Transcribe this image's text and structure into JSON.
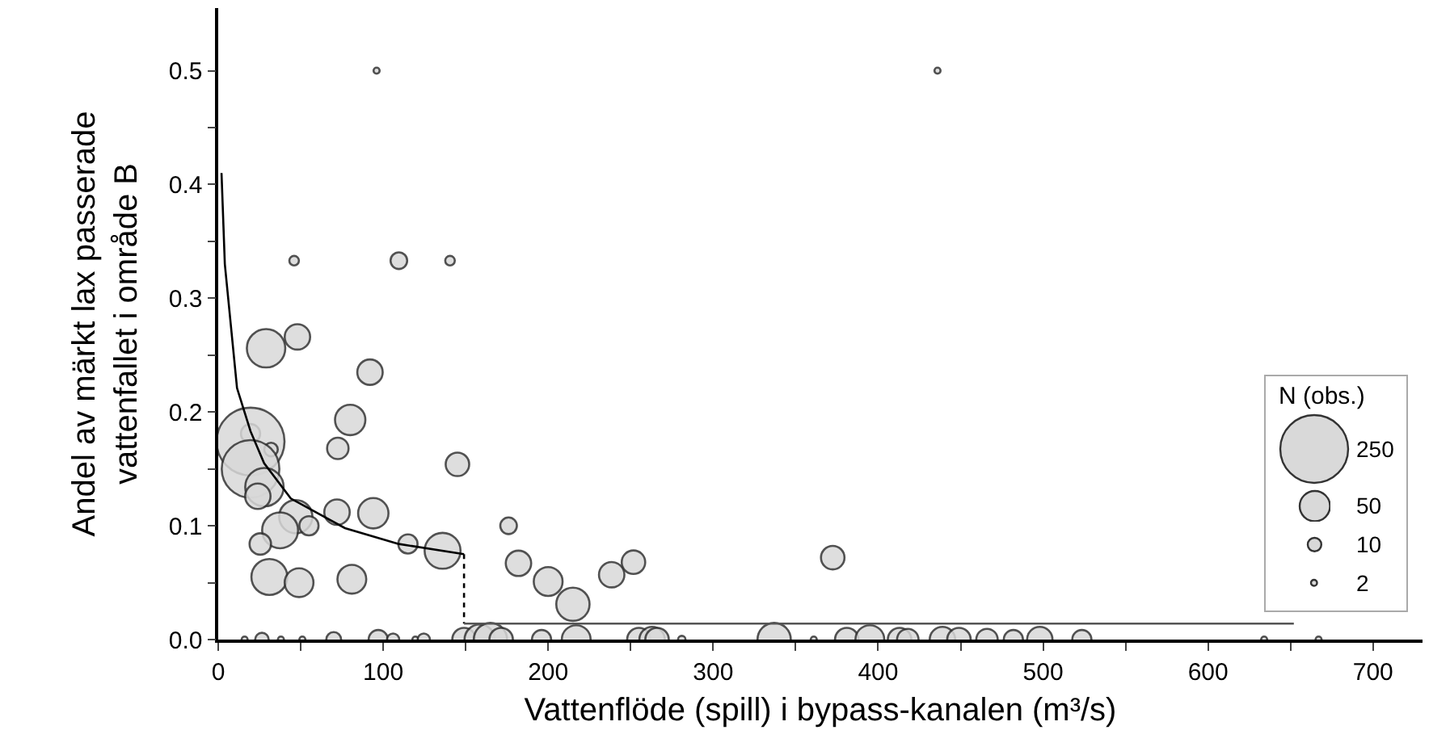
{
  "chart_data": {
    "type": "bubble",
    "xlabel": "Vattenflöde (spill) i bypass-kanalen (m³/s)",
    "ylabel": "Andel av märkt lax passerade\nvattenfallet i område B",
    "legend_title": "N (obs.)",
    "size_legend": [
      250,
      50,
      10,
      2
    ],
    "grid": false,
    "xlim": [
      0,
      730
    ],
    "xticks": [
      0,
      {
        "value": 50,
        "label": null
      },
      100,
      {
        "value": 150,
        "label": null
      },
      200,
      {
        "value": 250,
        "label": null
      },
      300,
      {
        "value": 350,
        "label": null
      },
      400,
      {
        "value": 450,
        "label": null
      },
      500,
      {
        "value": 550,
        "label": null
      },
      600,
      {
        "value": 650,
        "label": null
      },
      700
    ],
    "ylim": [
      0,
      0.555
    ],
    "yticks": [
      {
        "value": 0,
        "label": "0.0"
      },
      {
        "value": 0.05,
        "label": null
      },
      0.1,
      {
        "value": 0.15,
        "label": null
      },
      0.2,
      {
        "value": 0.25,
        "label": null
      },
      0.3,
      {
        "value": 0.35,
        "label": null
      },
      0.4,
      {
        "value": 0.45,
        "label": null
      },
      0.5
    ],
    "series": [
      {
        "color": "#d9d9d9",
        "x": [
          96,
          436,
          46,
          109.5,
          140.5,
          29,
          48,
          92,
          80,
          72.5,
          19.6,
          19.6,
          32,
          19.6,
          28,
          24,
          145,
          47,
          72,
          94,
          37.5,
          55,
          25.5,
          115,
          136,
          176,
          31,
          49,
          81,
          182,
          200,
          215,
          238.5,
          251.7,
          372.5,
          16,
          26.5,
          38,
          51,
          70,
          97,
          106,
          119.5,
          124.6,
          149,
          158.5,
          165,
          171.5,
          196,
          217,
          255,
          263,
          266,
          281,
          337,
          361,
          381,
          395,
          413,
          418,
          439,
          449,
          466,
          482,
          498,
          523.5,
          634,
          667
        ],
        "values": [
          0.5,
          0.5,
          0.333,
          0.333,
          0.333,
          0.256,
          0.266,
          0.235,
          0.193,
          0.168,
          0.181,
          0.174,
          0.167,
          0.15,
          0.134,
          0.126,
          0.154,
          0.108,
          0.112,
          0.111,
          0.096,
          0.1,
          0.084,
          0.084,
          0.078,
          0.1,
          0.055,
          0.05,
          0.053,
          0.067,
          0.051,
          0.031,
          0.057,
          0.068,
          0.072,
          0,
          0,
          0,
          0,
          0,
          0,
          0,
          0,
          0,
          0,
          0,
          0,
          0,
          0,
          0,
          0,
          0,
          0,
          0,
          0,
          0,
          0,
          0,
          0,
          0,
          0,
          0,
          0,
          0,
          0,
          0,
          0,
          0
        ],
        "sizes": [
          2,
          2,
          5,
          15,
          5,
          80,
          35,
          35,
          50,
          25,
          20,
          250,
          10,
          180,
          80,
          35,
          30,
          60,
          35,
          50,
          70,
          20,
          25,
          20,
          70,
          15,
          70,
          45,
          45,
          35,
          45,
          60,
          35,
          30,
          30,
          2,
          10,
          2,
          2,
          12,
          20,
          8,
          2,
          8,
          30,
          50,
          60,
          30,
          20,
          45,
          30,
          35,
          30,
          3,
          60,
          2,
          30,
          45,
          30,
          25,
          35,
          30,
          25,
          20,
          35,
          20,
          2,
          2
        ]
      },
      {
        "type": "line",
        "color": "#000000",
        "line_style": "solid",
        "x": [
          2,
          4,
          11.4,
          19.6,
          27.8,
          44,
          76.8,
          109.5,
          149
        ],
        "values": [
          0.41,
          0.33,
          0.221,
          0.183,
          0.155,
          0.124,
          0.098,
          0.084,
          0.075
        ]
      },
      {
        "type": "line",
        "color": "#000000",
        "line_style": "dotted",
        "x": [
          149,
          149
        ],
        "values": [
          0.075,
          0.014
        ]
      },
      {
        "type": "line",
        "color": "#555555",
        "line_style": "solid",
        "x": [
          149,
          652
        ],
        "values": [
          0.014,
          0.014
        ]
      }
    ]
  }
}
